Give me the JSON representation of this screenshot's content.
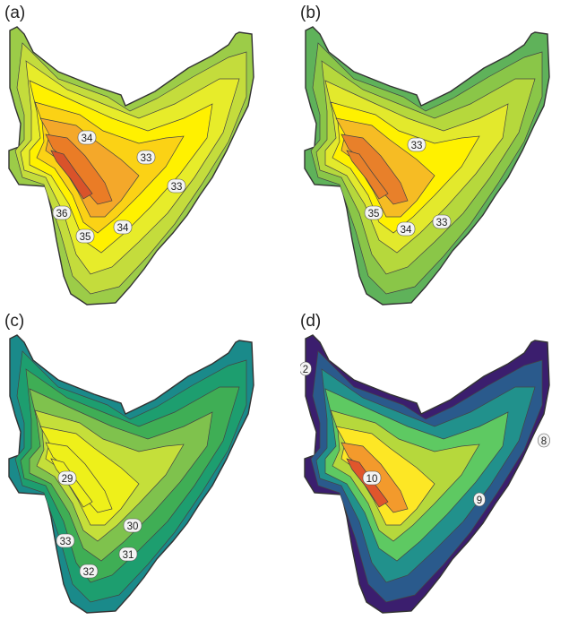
{
  "panels": [
    {
      "letter": "(a)",
      "labels": [
        "34",
        "33",
        "33",
        "36",
        "35",
        "34"
      ]
    },
    {
      "letter": "(b)",
      "labels": [
        "33",
        "35",
        "34",
        "33"
      ]
    },
    {
      "letter": "(c)",
      "labels": [
        "29",
        "30",
        "33",
        "31",
        "32"
      ]
    },
    {
      "letter": "(d)",
      "labels": [
        "2",
        "8",
        "10",
        "9"
      ]
    }
  ],
  "palettes": {
    "a": [
      "#9ccc48",
      "#c4dc3c",
      "#e7ec2a",
      "#fff100",
      "#fbd215",
      "#f4a82a",
      "#ea7c26",
      "#d9532a"
    ],
    "b": [
      "#5fb25a",
      "#8ac648",
      "#b6d83c",
      "#e3e92c",
      "#fff100",
      "#f6bc24",
      "#e8802a"
    ],
    "c": [
      "#1a8a8a",
      "#1d9e6f",
      "#3fae55",
      "#7fc24d",
      "#c5df3a",
      "#eef01a"
    ],
    "d": [
      "#3b1e6e",
      "#2a5a8c",
      "#21918c",
      "#5ec962",
      "#b6d83c",
      "#fde725",
      "#f39a2c",
      "#e0562c"
    ]
  }
}
